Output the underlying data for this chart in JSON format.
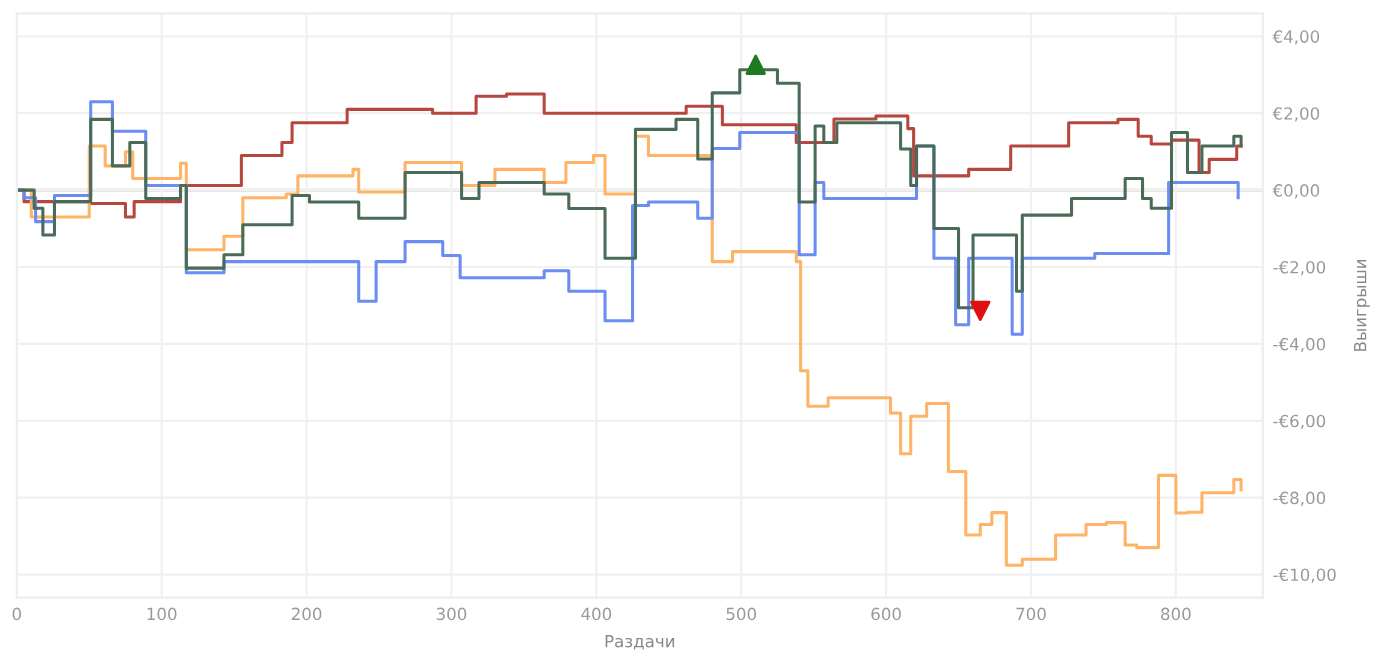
{
  "chart_data": {
    "type": "step",
    "xlabel": "Раздачи",
    "ylabel": "Выигрыши",
    "xlim": [
      0,
      860
    ],
    "xticks": [
      0,
      100,
      200,
      300,
      400,
      500,
      600,
      700,
      800
    ],
    "ylim": [
      -10.6,
      4.6
    ],
    "yticks": [
      {
        "value": 4,
        "label": "€4,00"
      },
      {
        "value": 2,
        "label": "€2,00"
      },
      {
        "value": 0,
        "label": "€0,00"
      },
      {
        "value": -2,
        "label": "-€2,00"
      },
      {
        "value": -4,
        "label": "-€4,00"
      },
      {
        "value": -6,
        "label": "-€6,00"
      },
      {
        "value": -8,
        "label": "-€8,00"
      },
      {
        "value": -10,
        "label": "-€10,00"
      }
    ],
    "grid": true,
    "legend": false,
    "ref_lines": [
      {
        "axis": "y",
        "value": 0,
        "color": "#c8c8c8"
      }
    ],
    "series": [
      {
        "color": "#b5473f",
        "x": [
          0,
          5,
          50,
          75,
          81,
          113,
          155,
          183,
          190,
          228,
          287,
          317,
          338,
          364,
          436,
          462,
          487,
          522,
          538,
          564,
          593,
          615,
          619,
          657,
          686,
          726,
          760,
          774,
          783,
          797,
          816,
          823,
          842,
          845
        ],
        "values": [
          0,
          -0.3,
          -0.35,
          -0.7,
          -0.3,
          0.12,
          0.9,
          1.24,
          1.75,
          2.1,
          2.0,
          2.44,
          2.5,
          2.0,
          2.0,
          2.18,
          1.7,
          1.7,
          1.24,
          1.85,
          1.93,
          1.6,
          0.37,
          0.54,
          1.15,
          1.75,
          1.84,
          1.4,
          1.2,
          1.3,
          0.46,
          0.8,
          1.15,
          1.15
        ]
      },
      {
        "color": "#ffb366",
        "x": [
          0,
          10,
          50,
          61,
          75,
          80,
          113,
          117,
          143,
          156,
          186,
          194,
          232,
          236,
          268,
          307,
          330,
          364,
          379,
          398,
          406,
          427,
          436,
          470,
          480,
          494,
          520,
          538,
          541,
          546,
          560,
          603,
          610,
          617,
          628,
          643,
          655,
          665,
          673,
          683,
          694,
          717,
          738,
          752,
          765,
          773,
          788,
          800,
          808,
          818,
          840,
          845
        ],
        "values": [
          0,
          -0.7,
          1.15,
          0.63,
          1.0,
          0.3,
          0.7,
          -1.55,
          -1.2,
          -0.2,
          -0.1,
          0.37,
          0.54,
          -0.05,
          0.72,
          0.12,
          0.54,
          0.2,
          0.72,
          0.9,
          -0.1,
          1.4,
          0.9,
          0.9,
          -1.86,
          -1.6,
          -1.6,
          -1.86,
          -4.7,
          -5.62,
          -5.4,
          -5.8,
          -6.86,
          -5.88,
          -5.55,
          -7.32,
          -8.97,
          -8.7,
          -8.39,
          -9.76,
          -9.6,
          -8.97,
          -8.7,
          -8.65,
          -9.23,
          -9.3,
          -7.42,
          -8.4,
          -8.38,
          -7.87,
          -7.53,
          -7.8
        ]
      },
      {
        "color": "#6b8cf0",
        "x": [
          0,
          5,
          13,
          26,
          51,
          66,
          89,
          117,
          143,
          236,
          248,
          268,
          294,
          306,
          364,
          381,
          406,
          425,
          436,
          470,
          480,
          499,
          540,
          551,
          557,
          621,
          633,
          648,
          657,
          687,
          694,
          744,
          795,
          843
        ],
        "values": [
          0,
          -0.2,
          -0.82,
          -0.14,
          2.3,
          1.53,
          0.12,
          -2.15,
          -1.86,
          -2.89,
          -1.86,
          -1.34,
          -1.7,
          -2.28,
          -2.1,
          -2.63,
          -3.4,
          -0.4,
          -0.31,
          -0.73,
          1.08,
          1.5,
          -1.68,
          0.2,
          -0.22,
          1.15,
          -1.77,
          -3.5,
          -1.77,
          -3.75,
          -1.77,
          -1.65,
          0.2,
          -0.2
        ]
      },
      {
        "color": "#4a6b58",
        "x": [
          0,
          12,
          18,
          26,
          51,
          66,
          78,
          89,
          113,
          117,
          143,
          156,
          190,
          202,
          236,
          268,
          307,
          319,
          364,
          381,
          406,
          427,
          455,
          470,
          480,
          499,
          525,
          540,
          551,
          557,
          566,
          610,
          617,
          621,
          633,
          650,
          660,
          690,
          694,
          728,
          765,
          777,
          783,
          797,
          808,
          818,
          840,
          845
        ],
        "values": [
          0,
          -0.47,
          -1.17,
          -0.3,
          1.84,
          0.63,
          1.24,
          -0.22,
          0.12,
          -2.03,
          -1.68,
          -0.9,
          -0.14,
          -0.31,
          -0.73,
          0.46,
          -0.22,
          0.2,
          -0.1,
          -0.48,
          -1.77,
          1.58,
          1.84,
          0.81,
          2.53,
          3.13,
          2.78,
          -0.31,
          1.67,
          1.24,
          1.75,
          1.07,
          0.12,
          1.15,
          -1.0,
          -3.06,
          -1.17,
          -2.63,
          -0.65,
          -0.22,
          0.3,
          -0.22,
          -0.47,
          1.5,
          0.46,
          1.15,
          1.4,
          1.15
        ]
      },
      {
        "type": "scatter",
        "marker": "triangle",
        "color": "#1e7a1e",
        "x": [
          510
        ],
        "values": [
          3.26
        ]
      },
      {
        "type": "scatter",
        "marker": "triangle-down",
        "color": "#e01010",
        "x": [
          665
        ],
        "values": [
          -3.14
        ]
      }
    ]
  }
}
